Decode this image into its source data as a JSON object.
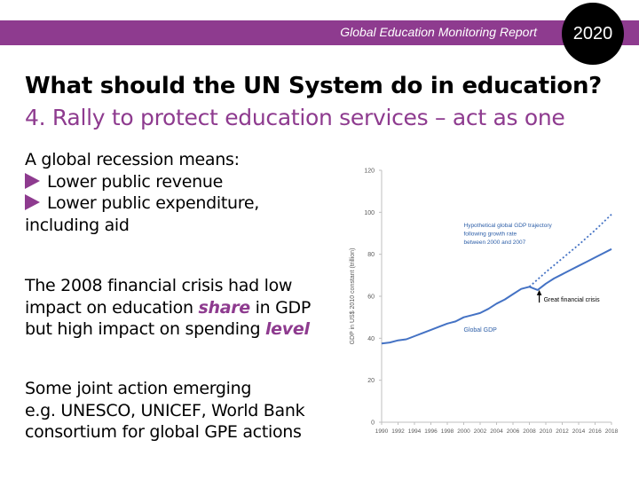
{
  "header": {
    "report_title": "Global Education Monitoring Report",
    "year": "2020"
  },
  "slide": {
    "title": "What should the UN System do in education?",
    "subtitle": "4. Rally to protect education services – act as one"
  },
  "left_text": {
    "recession_intro": "A global recession means:",
    "bullet_1": "Lower public revenue",
    "bullet_2_line1": "Lower public expenditure,",
    "bullet_2_line2": "including aid",
    "crisis_line1": "The 2008 financial crisis had low",
    "crisis_line2_pre": "impact on education ",
    "crisis_line2_emph": "share",
    "crisis_line2_post": " in GDP",
    "crisis_line3_pre": "but high impact on spending ",
    "crisis_line3_emph": "level",
    "joint_line1": "Some joint action emerging",
    "joint_line2": "e.g. UNESCO, UNICEF, World Bank",
    "joint_line3": "consortium for global GPE actions"
  },
  "colors": {
    "accent": "#8e3b8f",
    "line": "#4472c4",
    "annotation": "#2e5fa8"
  },
  "chart_data": {
    "type": "line",
    "ylabel": "GDP in US$ 2010 constant (trillion)",
    "xlabel": "",
    "ylim": [
      0,
      120
    ],
    "yticks": [
      0,
      20,
      40,
      60,
      80,
      100,
      120
    ],
    "xticks": [
      "1990",
      "1992",
      "1994",
      "1996",
      "1998",
      "2000",
      "2002",
      "2004",
      "2006",
      "2008",
      "2010",
      "2012",
      "2014",
      "2016",
      "2018"
    ],
    "series": [
      {
        "name": "Global GDP",
        "style": "solid",
        "x": [
          1990,
          1991,
          1992,
          1993,
          1994,
          1995,
          1996,
          1997,
          1998,
          1999,
          2000,
          2001,
          2002,
          2003,
          2004,
          2005,
          2006,
          2007,
          2008,
          2009,
          2010,
          2011,
          2012,
          2013,
          2014,
          2015,
          2016,
          2017,
          2018
        ],
        "y": [
          37.5,
          38.0,
          39.0,
          39.5,
          41.0,
          42.5,
          44.0,
          45.5,
          47.0,
          48.0,
          50.0,
          51.0,
          52.0,
          54.0,
          56.5,
          58.5,
          61.0,
          63.5,
          64.5,
          63.0,
          66.0,
          68.5,
          70.5,
          72.5,
          74.5,
          76.5,
          78.5,
          80.5,
          82.5
        ]
      },
      {
        "name": "Hypothetical global GDP trajectory",
        "style": "dotted",
        "x": [
          2008,
          2010,
          2012,
          2014,
          2016,
          2018
        ],
        "y": [
          64.5,
          71.5,
          78.0,
          84.5,
          91.5,
          99.0
        ]
      }
    ],
    "annotations": {
      "global_gdp": "Global GDP",
      "hypo_line1": "Hypothetical global GDP trajectory",
      "hypo_line2": "following growth rate",
      "hypo_line3": "between 2000 and 2007",
      "crisis": "Great financial crisis"
    }
  }
}
